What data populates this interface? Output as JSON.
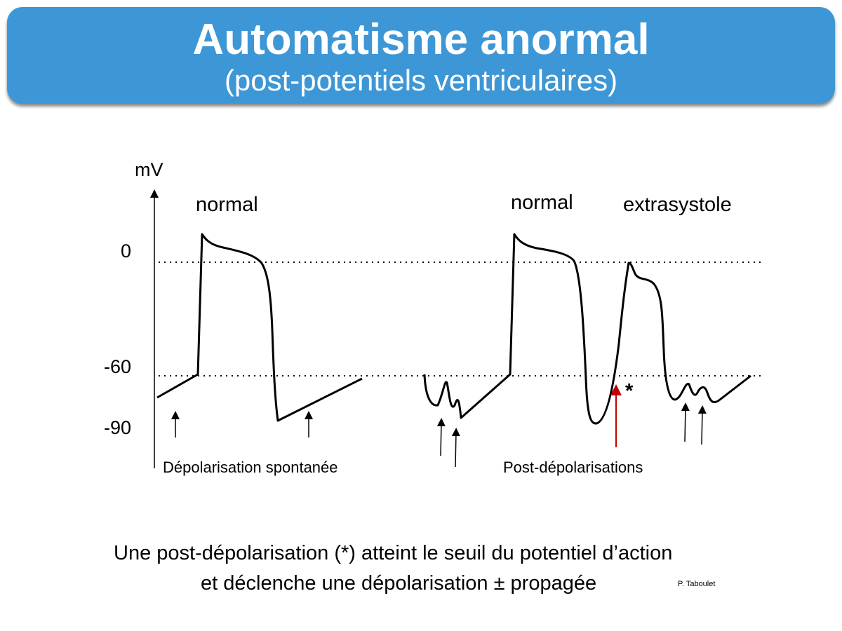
{
  "header": {
    "title": "Automatisme anormal",
    "subtitle": "(post-potentiels ventriculaires)"
  },
  "diagram": {
    "y_axis_unit": "mV",
    "y_ticks": [
      "0",
      "-60",
      "-90"
    ],
    "labels": {
      "normal_1": "normal",
      "normal_2": "normal",
      "extrasystole": "extrasystole",
      "star": "*",
      "spontaneous": "Dépolarisation spontanée",
      "post_depol": "Post-dépolarisations"
    },
    "colors": {
      "banner": "#3d97d6",
      "trace": "#000000",
      "trigger_arrow": "#c00000"
    }
  },
  "caption": {
    "line1": "Une post-dépolarisation (*) atteint le seuil du potentiel d’action",
    "line2": "et déclenche une dépolarisation ± propagée",
    "credit": "P. Taboulet"
  }
}
